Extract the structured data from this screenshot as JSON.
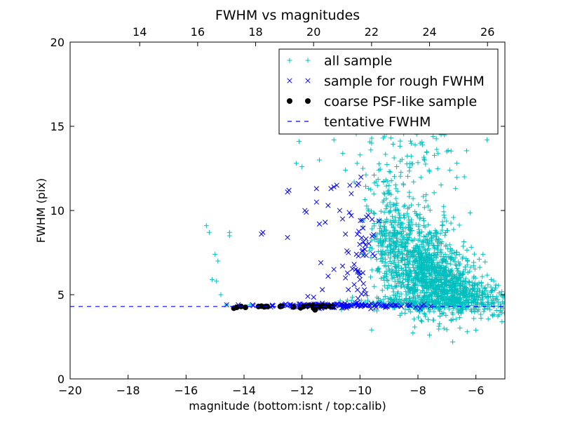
{
  "chart_data": {
    "type": "scatter",
    "title": "FWHM vs magnitudes",
    "xlabel": "magnitude (bottom:isnt / top:calib)",
    "ylabel": "FWHM (pix)",
    "xlim": [
      -20,
      -5
    ],
    "ylim": [
      0,
      20
    ],
    "top_axis": {
      "offset": 31.6,
      "ticks": [
        14,
        16,
        18,
        20,
        22,
        24,
        26
      ]
    },
    "x_ticks": [
      -20,
      -18,
      -16,
      -14,
      -12,
      -10,
      -8,
      -6
    ],
    "y_ticks": [
      0,
      5,
      10,
      15,
      20
    ],
    "legend": {
      "position": "top-right"
    },
    "tentative_fwhm": 4.3,
    "colors": {
      "all": "#00bfbf",
      "rough": "#0000ff",
      "coarse": "#000000",
      "tentative": "#0000ff"
    },
    "series": [
      {
        "name": "all sample",
        "marker": "plus",
        "scatter_seed": 17,
        "clusters": [
          {
            "n": 620,
            "cx": -7.9,
            "cy": 7.0,
            "sx": 0.65,
            "sy": 1.35
          },
          {
            "n": 520,
            "cx": -7.2,
            "cy": 5.6,
            "sx": 0.6,
            "sy": 0.85
          },
          {
            "n": 260,
            "cx": -8.9,
            "cy": 8.6,
            "sx": 0.4,
            "sy": 1.8
          },
          {
            "n": 220,
            "cx": -6.4,
            "cy": 4.9,
            "sx": 0.7,
            "sy": 0.5
          },
          {
            "n": 180,
            "cx": -8.3,
            "cy": 4.45,
            "sx": 1.1,
            "sy": 0.2
          },
          {
            "n": 90,
            "cx": -8.2,
            "cy": 13.3,
            "sx": 1.0,
            "sy": 1.4
          },
          {
            "n": 60,
            "cx": -5.5,
            "cy": 4.6,
            "sx": 0.5,
            "sy": 0.5
          }
        ],
        "points": [
          [
            -15.3,
            9.1
          ],
          [
            -15.2,
            8.7
          ],
          [
            -15.0,
            7.4
          ],
          [
            -14.9,
            7.0
          ],
          [
            -15.1,
            5.9
          ],
          [
            -14.95,
            5.8
          ],
          [
            -14.8,
            5.0
          ],
          [
            -14.5,
            8.7
          ],
          [
            -14.5,
            8.5
          ],
          [
            -14.6,
            4.4
          ],
          [
            -14.3,
            4.3
          ],
          [
            -13.8,
            4.4
          ],
          [
            -12.2,
            12.8
          ],
          [
            -12.0,
            12.6
          ],
          [
            -12.1,
            14.1
          ],
          [
            -11.4,
            13.0
          ],
          [
            -10.8,
            14.8
          ],
          [
            -10.9,
            14.2
          ],
          [
            -10.5,
            12.4
          ],
          [
            -10.1,
            12.8
          ],
          [
            -10.0,
            13.3
          ],
          [
            -9.9,
            12.5
          ],
          [
            -10.2,
            11.7
          ],
          [
            -9.7,
            11.3
          ],
          [
            -9.6,
            14.0
          ],
          [
            -9.8,
            15.6
          ],
          [
            -9.1,
            15.4
          ],
          [
            -9.4,
            15.7
          ],
          [
            -8.2,
            15.3
          ],
          [
            -9.2,
            14.3
          ],
          [
            -7.5,
            15.1
          ],
          [
            -7.2,
            14.5
          ],
          [
            -6.9,
            12.4
          ],
          [
            -6.7,
            11.3
          ],
          [
            -6.4,
            12.0
          ],
          [
            -6.6,
            4.0
          ],
          [
            -7.1,
            3.0
          ],
          [
            -6.8,
            2.2
          ],
          [
            -6.3,
            2.8
          ],
          [
            -6.0,
            2.9
          ],
          [
            -5.6,
            4.2
          ],
          [
            -5.2,
            3.8
          ],
          [
            -5.1,
            3.4
          ],
          [
            -5.3,
            4.7
          ],
          [
            -7.6,
            2.6
          ],
          [
            -12.6,
            4.35
          ],
          [
            -11.9,
            4.4
          ],
          [
            -11.2,
            4.3
          ],
          [
            -10.6,
            4.35
          ],
          [
            -10.3,
            4.4
          ]
        ]
      },
      {
        "name": "sample for rough FWHM",
        "marker": "x",
        "scatter_seed": 29,
        "clusters": [
          {
            "n": 130,
            "cx": -11.0,
            "cy": 4.35,
            "sx": 1.3,
            "sy": 0.07
          },
          {
            "n": 40,
            "cx": -10.0,
            "cy": 8.0,
            "sx": 0.25,
            "sy": 1.6
          }
        ],
        "points": [
          [
            -13.4,
            8.6
          ],
          [
            -13.35,
            8.7
          ],
          [
            -12.5,
            8.4
          ],
          [
            -12.45,
            11.2
          ],
          [
            -12.5,
            11.1
          ],
          [
            -11.9,
            10.0
          ],
          [
            -11.85,
            9.9
          ],
          [
            -11.5,
            11.3
          ],
          [
            -11.5,
            10.5
          ],
          [
            -11.4,
            9.2
          ],
          [
            -11.2,
            9.3
          ],
          [
            -11.1,
            10.3
          ],
          [
            -11.0,
            11.3
          ],
          [
            -10.9,
            11.4
          ],
          [
            -10.8,
            11.5
          ],
          [
            -10.7,
            10.0
          ],
          [
            -10.6,
            9.5
          ],
          [
            -10.5,
            8.6
          ],
          [
            -10.45,
            7.6
          ],
          [
            -10.4,
            7.5
          ],
          [
            -10.35,
            11.5
          ],
          [
            -10.3,
            11.0
          ],
          [
            -10.3,
            9.7
          ],
          [
            -10.2,
            6.8
          ],
          [
            -10.15,
            6.5
          ],
          [
            -10.6,
            6.7
          ],
          [
            -10.9,
            6.5
          ],
          [
            -11.1,
            6.1
          ],
          [
            -11.3,
            5.3
          ],
          [
            -11.35,
            6.9
          ],
          [
            -11.8,
            4.9
          ],
          [
            -11.6,
            4.85
          ],
          [
            -10.5,
            6.0
          ],
          [
            -10.4,
            5.3
          ],
          [
            -10.2,
            5.6
          ],
          [
            -10.0,
            5.9
          ],
          [
            -9.9,
            6.3
          ],
          [
            -10.1,
            11.5
          ],
          [
            -10.05,
            11.6
          ],
          [
            -12.6,
            4.4
          ],
          [
            -13.0,
            4.35
          ],
          [
            -13.7,
            4.4
          ],
          [
            -14.2,
            4.4
          ],
          [
            -14.6,
            4.4
          ],
          [
            -12.1,
            4.45
          ],
          [
            -11.3,
            4.5
          ],
          [
            -10.8,
            4.45
          ],
          [
            -10.5,
            4.3
          ],
          [
            -10.05,
            4.4
          ],
          [
            -9.8,
            4.35
          ]
        ]
      },
      {
        "name": "coarse PSF-like sample",
        "marker": "circle",
        "points": [
          [
            -14.35,
            4.2
          ],
          [
            -14.25,
            4.25
          ],
          [
            -14.1,
            4.3
          ],
          [
            -13.95,
            4.25
          ],
          [
            -13.5,
            4.3
          ],
          [
            -13.4,
            4.32
          ],
          [
            -13.3,
            4.28
          ],
          [
            -13.2,
            4.3
          ],
          [
            -12.75,
            4.3
          ],
          [
            -12.7,
            4.32
          ],
          [
            -12.3,
            4.27
          ],
          [
            -12.05,
            4.22
          ],
          [
            -11.95,
            4.3
          ],
          [
            -11.8,
            4.33
          ],
          [
            -11.65,
            4.35
          ],
          [
            -11.6,
            4.2
          ],
          [
            -11.55,
            4.1
          ],
          [
            -11.5,
            4.3
          ],
          [
            -11.4,
            4.3
          ],
          [
            -11.3,
            4.35
          ],
          [
            -11.2,
            4.3
          ],
          [
            -11.05,
            4.32
          ],
          [
            -10.95,
            4.3
          ]
        ]
      },
      {
        "name": "tentative FWHM",
        "marker": "dashed-line",
        "y": 4.3
      }
    ]
  }
}
